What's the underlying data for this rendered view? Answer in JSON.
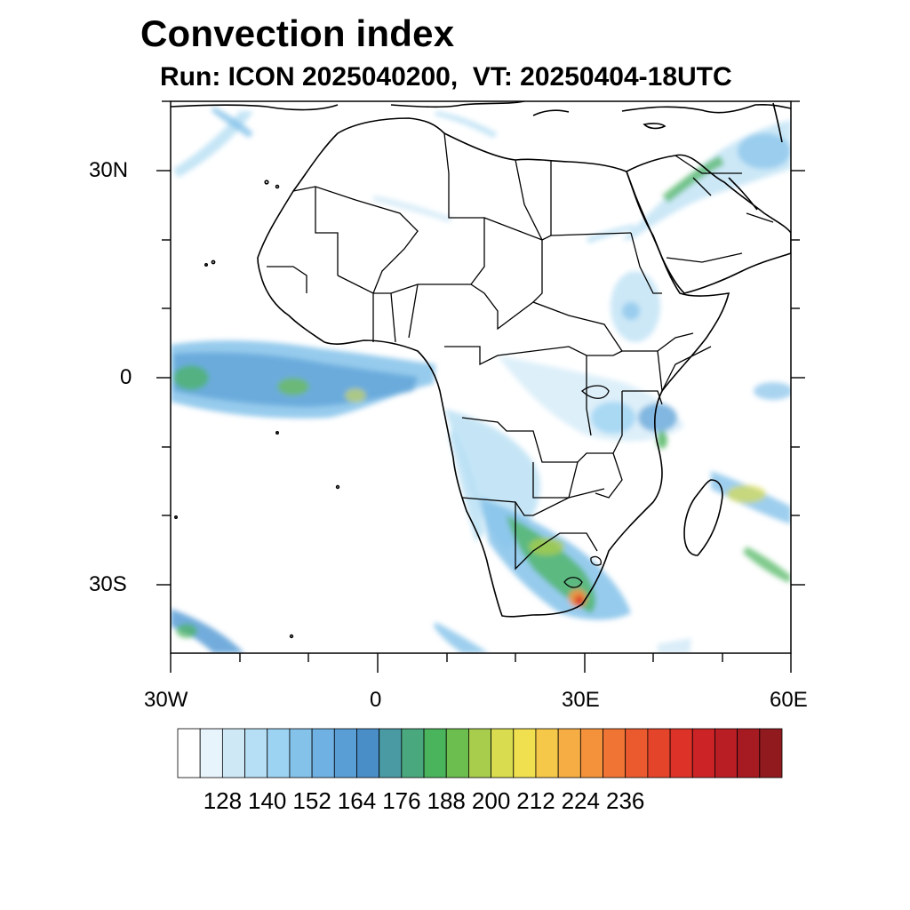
{
  "title": "Convection index",
  "subtitle": "Run: ICON 2025040200,  VT: 20250404-18UTC",
  "map": {
    "lon_range": [
      -30,
      60
    ],
    "lat_range": [
      -40,
      40
    ],
    "lat_labels": [
      "30N",
      "0",
      "30S"
    ],
    "lon_labels": [
      "30W",
      "0",
      "30E",
      "60E"
    ],
    "features": [
      "coastlines",
      "country-borders"
    ]
  },
  "colorbar": {
    "labels": [
      "128",
      "140",
      "152",
      "164",
      "176",
      "188",
      "200",
      "212",
      "224",
      "236"
    ],
    "colors": [
      "#ffffff",
      "#e8f4fb",
      "#cfe8f6",
      "#b6def4",
      "#9dd3f2",
      "#84c2ea",
      "#6fb1e2",
      "#5a9ed6",
      "#4a8ec8",
      "#4a9aa4",
      "#4aa87e",
      "#4ab45c",
      "#6cbe4e",
      "#a8cc4c",
      "#d8dc4e",
      "#f0e050",
      "#f6c84a",
      "#f6ae44",
      "#f4923c",
      "#f07434",
      "#ea5a2e",
      "#e4442a",
      "#dc3228",
      "#cc2426",
      "#b81e24",
      "#a61a22",
      "#901a1e"
    ]
  }
}
